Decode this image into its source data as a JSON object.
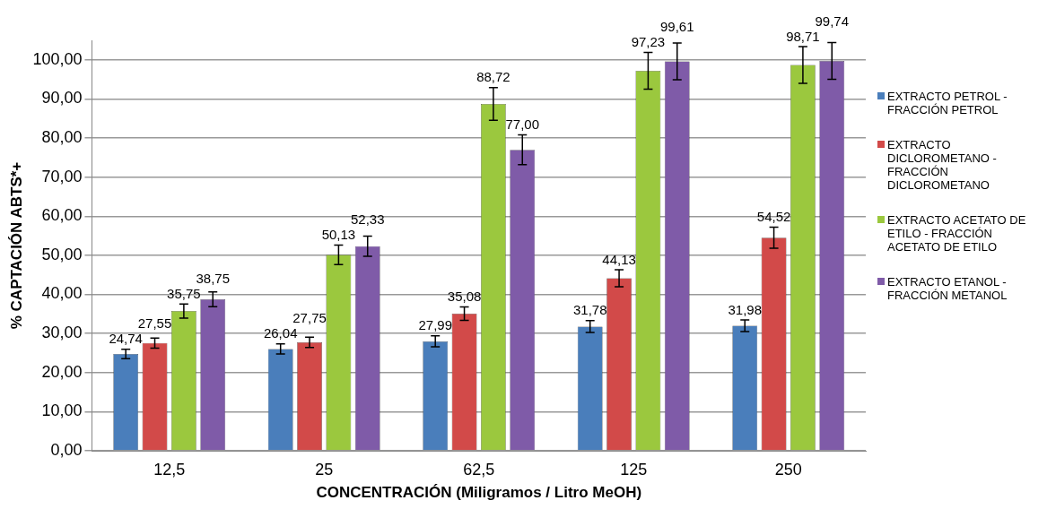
{
  "chart_data": {
    "type": "bar",
    "xlabel": "CONCENTRACIÓN (Miligramos / Litro MeOH)",
    "ylabel": "% CAPTACIÓN ABTS*+",
    "categories": [
      "12,5",
      "25",
      "62,5",
      "125",
      "250"
    ],
    "series": [
      {
        "name": "EXTRACTO PETROL - FRACCIÓN PETROL",
        "color": "#4a7ebb",
        "values": [
          24.74,
          26.04,
          27.99,
          31.78,
          31.98
        ],
        "errors": [
          1.2,
          1.3,
          1.4,
          1.5,
          1.5
        ],
        "value_labels": [
          "24,74",
          "26,04",
          "27,99",
          "31,78",
          "31,98"
        ]
      },
      {
        "name": "EXTRACTO DICLOROMETANO - FRACCIÓN DICLOROMETANO",
        "color": "#d24a49",
        "values": [
          27.55,
          27.75,
          35.08,
          44.13,
          54.52
        ],
        "errors": [
          1.3,
          1.3,
          1.7,
          2.2,
          2.7
        ],
        "value_labels": [
          "27,55",
          "27,75",
          "35,08",
          "44,13",
          "54,52"
        ]
      },
      {
        "name": "EXTRACTO ACETATO DE ETILO - FRACCIÓN ACETATO DE ETILO",
        "color": "#9bc83e",
        "values": [
          35.75,
          50.13,
          88.72,
          97.23,
          98.71
        ],
        "errors": [
          1.8,
          2.5,
          4.2,
          4.7,
          4.7
        ],
        "value_labels": [
          "35,75",
          "50,13",
          "88,72",
          "97,23",
          "98,71"
        ]
      },
      {
        "name": "EXTRACTO ETANOL - FRACCIÓN METANOL",
        "color": "#7f5ba8",
        "values": [
          38.75,
          52.33,
          77.0,
          99.61,
          99.74
        ],
        "errors": [
          1.9,
          2.6,
          3.8,
          4.7,
          4.7
        ],
        "value_labels": [
          "38,75",
          "52,33",
          "77,00",
          "99,61",
          "99,74"
        ]
      }
    ],
    "ylim": [
      0,
      105
    ],
    "yticks": [
      {
        "value": 0,
        "label": "0,00"
      },
      {
        "value": 10,
        "label": "10,00"
      },
      {
        "value": 20,
        "label": "20,00"
      },
      {
        "value": 30,
        "label": "30,00"
      },
      {
        "value": 40,
        "label": "40,00"
      },
      {
        "value": 50,
        "label": "50,00"
      },
      {
        "value": 60,
        "label": "60,00"
      },
      {
        "value": 70,
        "label": "70,00"
      },
      {
        "value": 80,
        "label": "80,00"
      },
      {
        "value": 90,
        "label": "90,00"
      },
      {
        "value": 100,
        "label": "100,00"
      }
    ],
    "grid": "y",
    "legend": "right"
  }
}
